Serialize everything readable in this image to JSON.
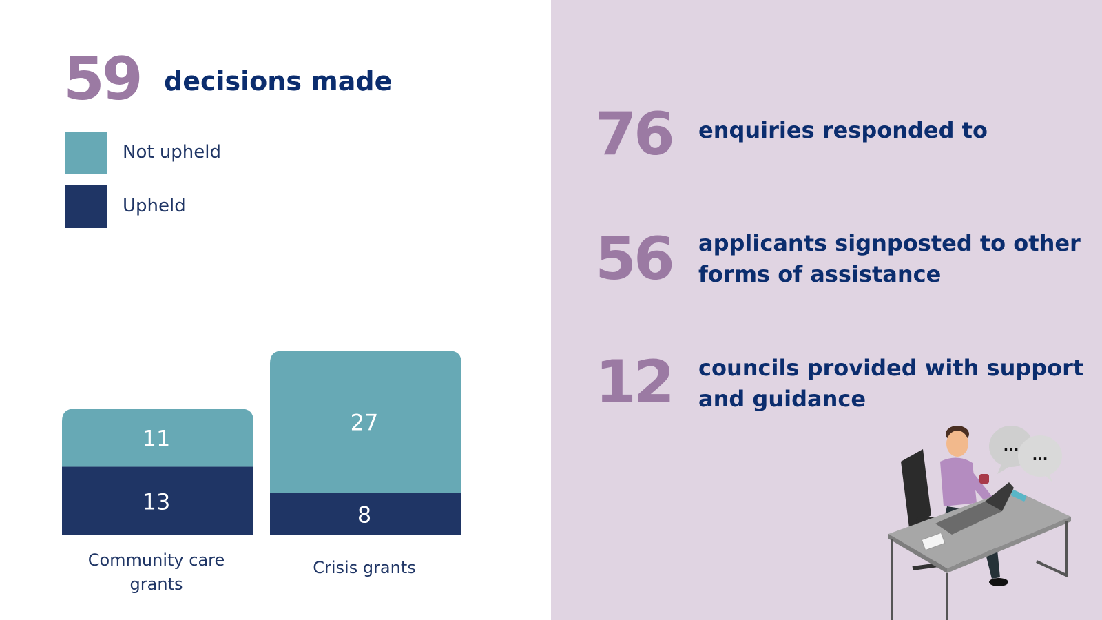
{
  "colors": {
    "accent_purple": "#9b7aa3",
    "navy": "#0b2d6e",
    "not_upheld": "#67a9b5",
    "upheld": "#1f3565",
    "panel_bg": "#e0d4e2"
  },
  "headline": {
    "number": "59",
    "label": "decisions made"
  },
  "legend": [
    {
      "label": "Not upheld",
      "color": "#67a9b5"
    },
    {
      "label": "Upheld",
      "color": "#1f3565"
    }
  ],
  "chart_data": {
    "type": "bar",
    "stacked": true,
    "categories": [
      "Community care grants",
      "Crisis grants"
    ],
    "category_labels": [
      [
        "Community care",
        "grants"
      ],
      [
        "Crisis grants"
      ]
    ],
    "series": [
      {
        "name": "Upheld",
        "values": [
          13,
          8
        ],
        "color": "#1f3565"
      },
      {
        "name": "Not upheld",
        "values": [
          11,
          27
        ],
        "color": "#67a9b5"
      }
    ],
    "legend_position": "top-left",
    "grid": false
  },
  "stats": [
    {
      "number": "76",
      "label": "enquiries responded to"
    },
    {
      "number": "56",
      "label": "applicants signposted to other forms of assistance"
    },
    {
      "number": "12",
      "label": "councils provided with support and guidance"
    }
  ],
  "illustration": {
    "icon": "person-at-laptop-desk-illustration",
    "bubbles": [
      "...",
      "..."
    ]
  }
}
